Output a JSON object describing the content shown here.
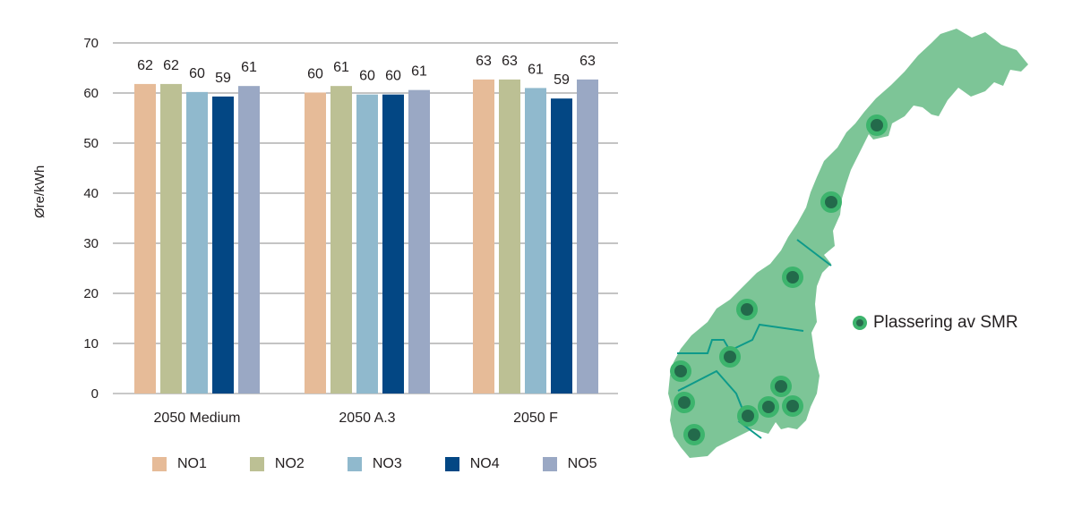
{
  "chart_data": {
    "type": "bar",
    "title": "",
    "xlabel": "",
    "ylabel": "Øre/kWh",
    "ylim": [
      0,
      70
    ],
    "yticks": [
      0,
      10,
      20,
      30,
      40,
      50,
      60,
      70
    ],
    "grid": true,
    "legend_position": "bottom",
    "categories": [
      "2050 Medium",
      "2050 A.3",
      "2050 F"
    ],
    "series": [
      {
        "name": "NO1",
        "color": "#E6BB98",
        "values": [
          62,
          60,
          63
        ]
      },
      {
        "name": "NO2",
        "color": "#BCC094",
        "values": [
          62,
          61,
          63
        ]
      },
      {
        "name": "NO3",
        "color": "#90B9CD",
        "values": [
          60,
          60,
          61
        ]
      },
      {
        "name": "NO4",
        "color": "#034784",
        "values": [
          59,
          60,
          59
        ]
      },
      {
        "name": "NO5",
        "color": "#9AA8C4",
        "values": [
          61,
          61,
          63
        ]
      }
    ],
    "bar_heights_precise": [
      [
        61.8,
        61.8,
        60.2,
        59.3,
        61.4
      ],
      [
        60.1,
        61.4,
        59.7,
        59.7,
        60.6
      ],
      [
        62.7,
        62.7,
        61.0,
        58.9,
        62.7
      ]
    ]
  },
  "axis": {
    "ylabel": "Øre/kWh",
    "ticks": [
      "0",
      "10",
      "20",
      "30",
      "40",
      "50",
      "60",
      "70"
    ]
  },
  "legend": {
    "items": [
      {
        "label": "NO1",
        "color": "#E6BB98"
      },
      {
        "label": "NO2",
        "color": "#BCC094"
      },
      {
        "label": "NO3",
        "color": "#90B9CD"
      },
      {
        "label": "NO4",
        "color": "#034784"
      },
      {
        "label": "NO5",
        "color": "#9AA8C4"
      }
    ]
  },
  "map": {
    "legend_label": "Plassering av SMR",
    "land_color": "#7DC597",
    "marker_outer_color": "#3DB46D",
    "marker_inner_color": "#236A4B",
    "boundary_color": "#0E9A8A",
    "marker_count": 13
  }
}
